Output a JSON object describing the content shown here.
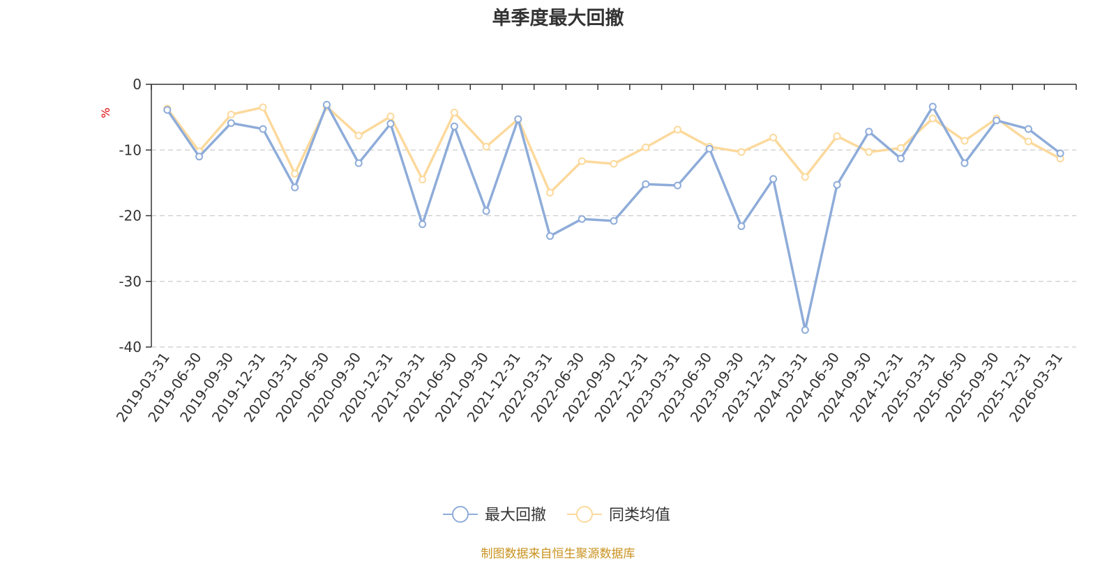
{
  "chart_data": {
    "type": "line",
    "title": "单季度最大回撤",
    "ylabel": "%",
    "ylim": [
      -40,
      0
    ],
    "yticks": [
      0,
      -10,
      -20,
      -30,
      -40
    ],
    "grid": true,
    "legend_position": "bottom-center",
    "categories": [
      "2019-03-31",
      "2019-06-30",
      "2019-09-30",
      "2019-12-31",
      "2020-03-31",
      "2020-06-30",
      "2020-09-30",
      "2020-12-31",
      "2021-03-31",
      "2021-06-30",
      "2021-09-30",
      "2021-12-31",
      "2022-03-31",
      "2022-06-30",
      "2022-09-30",
      "2022-12-31",
      "2023-03-31",
      "2023-06-30",
      "2023-09-30",
      "2023-12-31",
      "2024-03-31",
      "2024-06-30",
      "2024-09-30",
      "2024-12-31",
      "2025-03-31",
      "2025-06-30",
      "2025-09-30",
      "2025-12-31",
      "2026-03-31"
    ],
    "series": [
      {
        "name": "最大回撤",
        "color": "#8eacd9",
        "values": [
          -3.9,
          -11.0,
          -5.9,
          -6.8,
          -15.7,
          -3.1,
          -12.0,
          -6.0,
          -21.3,
          -6.4,
          -19.3,
          -5.3,
          -23.1,
          -20.5,
          -20.8,
          -15.2,
          -15.4,
          -9.8,
          -21.6,
          -14.4,
          -37.4,
          -15.3,
          -7.2,
          -11.3,
          -3.4,
          -12.0,
          -5.5,
          -6.8,
          -10.5
        ]
      },
      {
        "name": "同类均值",
        "color": "#fcd99c",
        "values": [
          -3.7,
          -10.2,
          -4.6,
          -3.5,
          -13.6,
          -3.4,
          -7.8,
          -4.9,
          -14.5,
          -4.3,
          -9.5,
          -5.3,
          -16.5,
          -11.7,
          -12.1,
          -9.6,
          -6.9,
          -9.5,
          -10.3,
          -8.1,
          -14.1,
          -7.9,
          -10.3,
          -9.7,
          -5.2,
          -8.6,
          -5.2,
          -8.7,
          -11.3
        ]
      }
    ]
  },
  "footer": {
    "text": "制图数据来自恒生聚源数据库",
    "color": "#c8921e"
  },
  "colors": {
    "axis": "#333333",
    "grid": "#cccccc",
    "ylabel": "#e00000"
  }
}
